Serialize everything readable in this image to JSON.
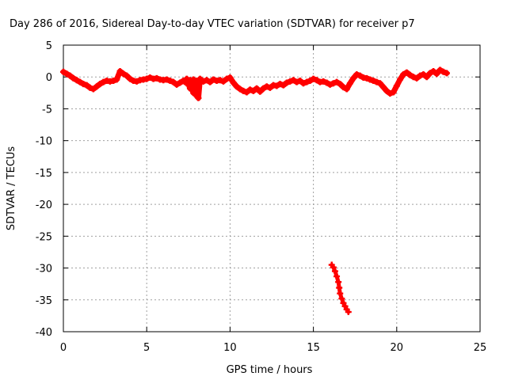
{
  "chart_data": {
    "type": "scatter",
    "title": "Day 286 of 2016, Sidereal Day-to-day VTEC variation (SDTVAR) for receiver p7",
    "xlabel": "GPS time / hours",
    "ylabel": "SDTVAR / TECUs",
    "xlim": [
      0,
      25
    ],
    "ylim": [
      -40,
      5
    ],
    "xticks": [
      0,
      5,
      10,
      15,
      20,
      25
    ],
    "yticks": [
      5,
      0,
      -5,
      -10,
      -15,
      -20,
      -25,
      -30,
      -35,
      -40
    ],
    "xtick_labels": [
      "0",
      "5",
      "10",
      "15",
      "20",
      "25"
    ],
    "ytick_labels": [
      "5",
      "0",
      "-5",
      "-10",
      "-15",
      "-20",
      "-25",
      "-30",
      "-35",
      "-40"
    ],
    "grid": true,
    "marker": "+",
    "colors": {
      "series": "#ff0000",
      "grid": "#a0a0a0",
      "axes": "#000000"
    },
    "series": [
      {
        "values": [
          [
            0.0,
            0.8
          ],
          [
            0.2,
            0.5
          ],
          [
            0.4,
            0.2
          ],
          [
            0.6,
            -0.2
          ],
          [
            0.8,
            -0.5
          ],
          [
            1.0,
            -0.8
          ],
          [
            1.2,
            -1.1
          ],
          [
            1.4,
            -1.3
          ],
          [
            1.6,
            -1.7
          ],
          [
            1.8,
            -1.9
          ],
          [
            2.0,
            -1.5
          ],
          [
            2.2,
            -1.1
          ],
          [
            2.4,
            -0.8
          ],
          [
            2.6,
            -0.6
          ],
          [
            2.8,
            -0.7
          ],
          [
            3.0,
            -0.6
          ],
          [
            3.2,
            -0.4
          ],
          [
            3.4,
            0.9
          ],
          [
            3.6,
            0.5
          ],
          [
            3.8,
            0.2
          ],
          [
            4.0,
            -0.3
          ],
          [
            4.2,
            -0.6
          ],
          [
            4.4,
            -0.7
          ],
          [
            4.6,
            -0.5
          ],
          [
            4.8,
            -0.4
          ],
          [
            5.0,
            -0.3
          ],
          [
            5.2,
            -0.1
          ],
          [
            5.4,
            -0.3
          ],
          [
            5.6,
            -0.2
          ],
          [
            5.8,
            -0.4
          ],
          [
            6.0,
            -0.5
          ],
          [
            6.2,
            -0.4
          ],
          [
            6.4,
            -0.6
          ],
          [
            6.6,
            -0.8
          ],
          [
            6.8,
            -1.2
          ],
          [
            7.0,
            -0.9
          ],
          [
            7.2,
            -0.6
          ],
          [
            7.4,
            -1.0
          ],
          [
            7.6,
            -1.8
          ],
          [
            7.8,
            -2.5
          ],
          [
            8.0,
            -3.0
          ],
          [
            8.1,
            -3.3
          ],
          [
            7.4,
            -0.3
          ],
          [
            7.6,
            -0.5
          ],
          [
            7.8,
            -0.4
          ],
          [
            8.0,
            -0.6
          ],
          [
            8.2,
            -0.3
          ],
          [
            8.4,
            -0.7
          ],
          [
            8.6,
            -0.5
          ],
          [
            8.8,
            -0.8
          ],
          [
            9.0,
            -0.4
          ],
          [
            9.2,
            -0.6
          ],
          [
            9.4,
            -0.5
          ],
          [
            9.6,
            -0.7
          ],
          [
            9.8,
            -0.3
          ],
          [
            10.0,
            -0.1
          ],
          [
            10.2,
            -0.9
          ],
          [
            10.4,
            -1.5
          ],
          [
            10.6,
            -1.9
          ],
          [
            10.8,
            -2.2
          ],
          [
            11.0,
            -2.4
          ],
          [
            11.2,
            -2.0
          ],
          [
            11.4,
            -2.2
          ],
          [
            11.6,
            -1.8
          ],
          [
            11.8,
            -2.3
          ],
          [
            12.0,
            -1.8
          ],
          [
            12.2,
            -1.5
          ],
          [
            12.4,
            -1.7
          ],
          [
            12.6,
            -1.3
          ],
          [
            12.8,
            -1.4
          ],
          [
            13.0,
            -1.1
          ],
          [
            13.2,
            -1.3
          ],
          [
            13.4,
            -0.9
          ],
          [
            13.6,
            -0.7
          ],
          [
            13.8,
            -0.5
          ],
          [
            14.0,
            -0.8
          ],
          [
            14.2,
            -0.6
          ],
          [
            14.4,
            -1.0
          ],
          [
            14.6,
            -0.8
          ],
          [
            14.8,
            -0.6
          ],
          [
            15.0,
            -0.3
          ],
          [
            15.2,
            -0.5
          ],
          [
            15.4,
            -0.8
          ],
          [
            15.6,
            -0.7
          ],
          [
            15.8,
            -0.9
          ],
          [
            16.0,
            -1.2
          ],
          [
            16.2,
            -1.0
          ],
          [
            16.4,
            -0.8
          ],
          [
            16.6,
            -1.1
          ],
          [
            16.8,
            -1.6
          ],
          [
            17.0,
            -1.9
          ],
          [
            17.2,
            -1.0
          ],
          [
            17.4,
            -0.2
          ],
          [
            17.6,
            0.4
          ],
          [
            17.8,
            0.2
          ],
          [
            18.0,
            -0.1
          ],
          [
            18.2,
            -0.2
          ],
          [
            18.4,
            -0.4
          ],
          [
            18.6,
            -0.6
          ],
          [
            18.8,
            -0.8
          ],
          [
            19.0,
            -1.0
          ],
          [
            19.2,
            -1.6
          ],
          [
            19.4,
            -2.2
          ],
          [
            19.6,
            -2.6
          ],
          [
            19.8,
            -2.4
          ],
          [
            20.0,
            -1.4
          ],
          [
            20.2,
            -0.4
          ],
          [
            20.4,
            0.4
          ],
          [
            20.6,
            0.7
          ],
          [
            20.8,
            0.3
          ],
          [
            21.0,
            0.0
          ],
          [
            21.2,
            -0.2
          ],
          [
            21.4,
            0.2
          ],
          [
            21.6,
            0.4
          ],
          [
            21.8,
            0.0
          ],
          [
            22.0,
            0.6
          ],
          [
            22.2,
            0.9
          ],
          [
            22.4,
            0.5
          ],
          [
            22.6,
            1.1
          ],
          [
            22.8,
            0.8
          ],
          [
            23.0,
            0.6
          ],
          [
            16.1,
            -29.5
          ],
          [
            16.2,
            -29.9
          ],
          [
            16.3,
            -30.5
          ],
          [
            16.4,
            -31.3
          ],
          [
            16.5,
            -32.2
          ],
          [
            16.55,
            -33.1
          ],
          [
            16.6,
            -34.0
          ],
          [
            16.7,
            -34.8
          ],
          [
            16.8,
            -35.5
          ],
          [
            16.9,
            -36.0
          ],
          [
            17.0,
            -36.5
          ],
          [
            17.1,
            -36.9
          ]
        ]
      }
    ]
  }
}
